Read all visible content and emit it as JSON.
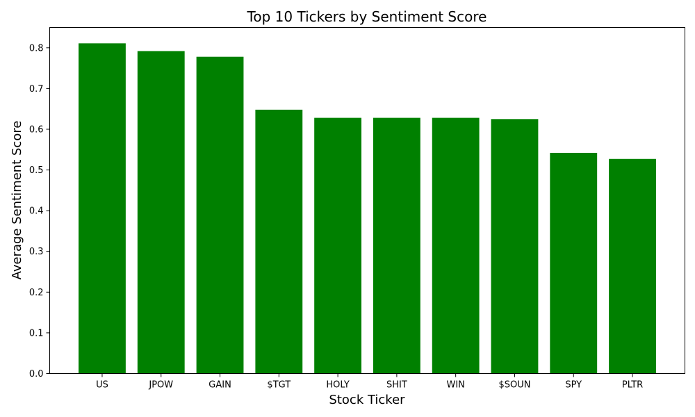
{
  "chart_data": {
    "type": "bar",
    "title": "Top 10 Tickers by Sentiment Score",
    "xlabel": "Stock Ticker",
    "ylabel": "Average Sentiment Score",
    "categories": [
      "US",
      "JPOW",
      "GAIN",
      "$TGT",
      "HOLY",
      "SHIT",
      "WIN",
      "$SOUN",
      "SPY",
      "PLTR"
    ],
    "values": [
      0.811,
      0.792,
      0.778,
      0.648,
      0.628,
      0.628,
      0.628,
      0.625,
      0.542,
      0.527
    ],
    "ylim": [
      0,
      0.85
    ],
    "yticks": [
      0.0,
      0.1,
      0.2,
      0.3,
      0.4,
      0.5,
      0.6,
      0.7,
      0.8
    ],
    "yticklabels": [
      "0.0",
      "0.1",
      "0.2",
      "0.3",
      "0.4",
      "0.5",
      "0.6",
      "0.7",
      "0.8"
    ],
    "bar_color": "#008000",
    "grid": false,
    "legend": false
  }
}
